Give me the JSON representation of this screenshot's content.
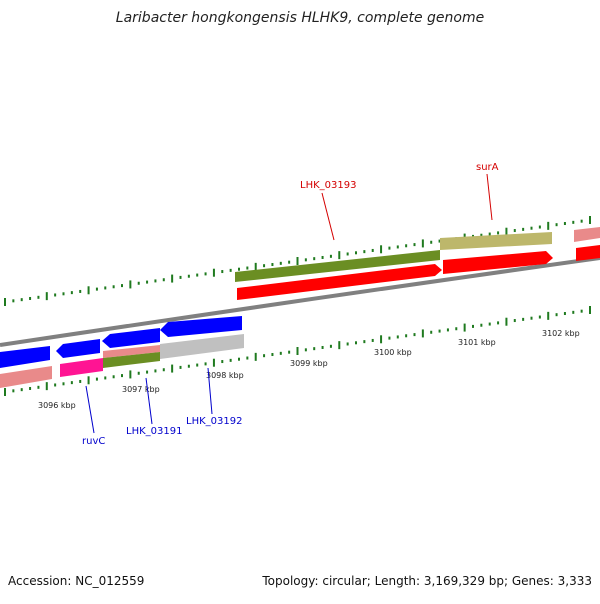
{
  "title": "Laribacter hongkongensis HLHK9, complete genome",
  "footer": {
    "accession": "Accession: NC_012559",
    "summary": "Topology: circular; Length: 3,169,329 bp; Genes: 3,333"
  },
  "ticks": [
    "3096 kbp",
    "3097 kbp",
    "3098 kbp",
    "3099 kbp",
    "3100 kbp",
    "3101 kbp",
    "3102 kbp"
  ],
  "genes": {
    "lhk03193": "LHK_03193",
    "surA": "surA",
    "ruvC": "ruvC",
    "lhk03191": "LHK_03191",
    "lhk03192": "LHK_03192"
  },
  "colors": {
    "forward_cds": "#ff0000",
    "forward_light": "#e98a8a",
    "reverse_cds": "#0000ff",
    "olive": "#6b8e23",
    "khaki": "#bdb76b",
    "magenta": "#ff1493",
    "gray_feature": "#c0c0c0",
    "backbone": "#808080",
    "tick": "#1f7a1f",
    "label_red": "#d40000",
    "label_blue": "#0000cc"
  }
}
